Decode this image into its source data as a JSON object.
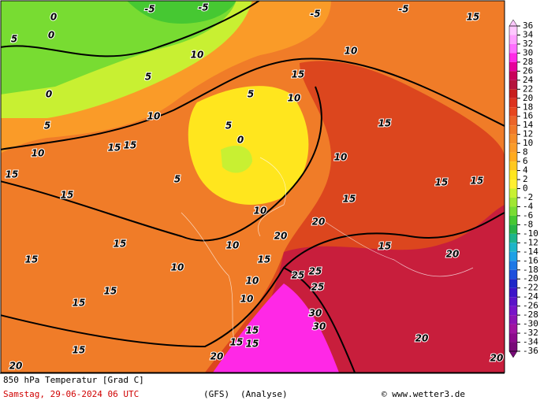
{
  "map": {
    "contour_labels": [
      "0",
      "-5",
      "-5",
      "-5",
      "-5",
      "15",
      "5",
      "0",
      "10",
      "10",
      "15",
      "5",
      "0",
      "10",
      "5",
      "5",
      "10",
      "5",
      "10",
      "15",
      "15",
      "0",
      "10",
      "15",
      "15",
      "15",
      "5",
      "15",
      "15",
      "15",
      "10",
      "20",
      "20",
      "15",
      "10",
      "15",
      "20",
      "10",
      "15",
      "15",
      "25",
      "25",
      "25",
      "15",
      "15",
      "10",
      "10",
      "30",
      "30",
      "15",
      "15",
      "15",
      "15",
      "20",
      "20",
      "20",
      "20"
    ]
  },
  "colorbar": {
    "labels": [
      36,
      34,
      32,
      30,
      28,
      26,
      24,
      22,
      20,
      18,
      16,
      14,
      12,
      10,
      8,
      6,
      4,
      2,
      0,
      -2,
      -4,
      -6,
      -8,
      -10,
      -12,
      -14,
      -16,
      -18,
      -20,
      -22,
      -24,
      -26,
      -28,
      -30,
      -32,
      -34,
      -36
    ],
    "colors": [
      "#ffc8ff",
      "#ffa0ff",
      "#ff6eff",
      "#ff28e6",
      "#e6009b",
      "#c8005a",
      "#b4143c",
      "#c81e1e",
      "#dc321e",
      "#e6461e",
      "#eb6428",
      "#f07828",
      "#f58c28",
      "#fa9b28",
      "#ffaa1e",
      "#ffc81e",
      "#ffe61e",
      "#fff032",
      "#c8f032",
      "#a0e632",
      "#78dc32",
      "#46c832",
      "#28b446",
      "#1eb48c",
      "#1eb4c8",
      "#1ea0e6",
      "#1e78e6",
      "#1e50dc",
      "#1e28c8",
      "#3c14c8",
      "#5a14c8",
      "#7814c8",
      "#8c14b4",
      "#a014a0",
      "#8c0a8c",
      "#780a78"
    ]
  },
  "footer": {
    "title": "850 hPa Temperatur [Grad C]",
    "date": "Samstag, 29-06-2024  06 UTC",
    "model": "(GFS)",
    "kind": "(Analyse)",
    "credit": "© www.wetter3.de"
  }
}
